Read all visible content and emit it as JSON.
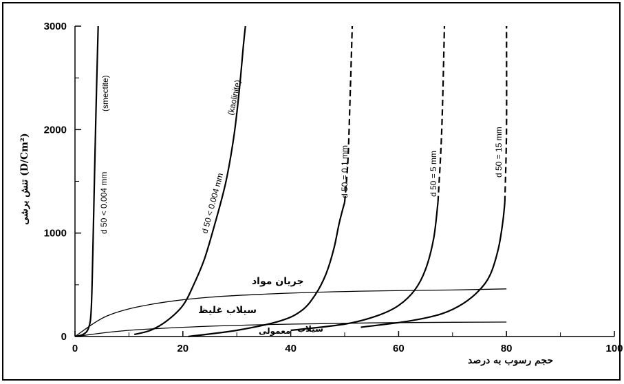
{
  "chart_data": {
    "type": "line",
    "xlabel": "حجم رسوب به درصد",
    "ylabel": "تنش برشی (D/Cm²)",
    "xlim": [
      0,
      100
    ],
    "ylim": [
      0,
      3000
    ],
    "x_ticks": [
      "0",
      "20",
      "40",
      "60",
      "80",
      "100"
    ],
    "y_ticks": [
      "0",
      "1000",
      "2000",
      "3000"
    ],
    "grid": false,
    "series": [
      {
        "name": "d 50 < 0.004 mm (smectite)",
        "points": [
          [
            0,
            0
          ],
          [
            1.5,
            20
          ],
          [
            2.5,
            80
          ],
          [
            3.0,
            250
          ],
          [
            3.3,
            800
          ],
          [
            3.6,
            1500
          ],
          [
            3.9,
            2200
          ],
          [
            4.3,
            3000
          ]
        ],
        "dashed_from_y": null
      },
      {
        "name": "d 50 < 0.004 mm (kaolinite)",
        "points": [
          [
            11,
            20
          ],
          [
            14,
            60
          ],
          [
            17,
            150
          ],
          [
            20,
            300
          ],
          [
            22,
            500
          ],
          [
            24,
            750
          ],
          [
            26,
            1100
          ],
          [
            28,
            1500
          ],
          [
            29.5,
            1950
          ],
          [
            30.5,
            2400
          ],
          [
            31.2,
            2800
          ],
          [
            31.6,
            3000
          ]
        ],
        "dashed_from_y": null
      },
      {
        "name": "d 50 = 0.1 mm",
        "points": [
          [
            21,
            0
          ],
          [
            30,
            60
          ],
          [
            38,
            150
          ],
          [
            42,
            250
          ],
          [
            44.5,
            400
          ],
          [
            46.5,
            600
          ],
          [
            48,
            850
          ],
          [
            49,
            1100
          ],
          [
            50,
            1300
          ],
          [
            50.6,
            1700
          ],
          [
            51,
            2300
          ],
          [
            51.4,
            3000
          ]
        ],
        "dashed_from_y": 1300
      },
      {
        "name": "d 50 = 5 mm",
        "points": [
          [
            40,
            60
          ],
          [
            50,
            120
          ],
          [
            56,
            200
          ],
          [
            60,
            300
          ],
          [
            63,
            450
          ],
          [
            65,
            650
          ],
          [
            66.5,
            950
          ],
          [
            67.3,
            1300
          ],
          [
            68,
            2000
          ],
          [
            68.5,
            3000
          ]
        ],
        "dashed_from_y": 1300
      },
      {
        "name": "d 50 = 15 mm",
        "points": [
          [
            53,
            90
          ],
          [
            62,
            150
          ],
          [
            68,
            220
          ],
          [
            72,
            320
          ],
          [
            75,
            450
          ],
          [
            77,
            600
          ],
          [
            78.5,
            850
          ],
          [
            79.3,
            1100
          ],
          [
            79.7,
            1300
          ],
          [
            80,
            2000
          ],
          [
            80,
            3000
          ]
        ],
        "dashed_from_y": 1300
      },
      {
        "name": "جریان مواد",
        "points": [
          [
            0,
            0
          ],
          [
            6,
            200
          ],
          [
            14,
            310
          ],
          [
            25,
            380
          ],
          [
            40,
            420
          ],
          [
            55,
            440
          ],
          [
            70,
            450
          ],
          [
            80,
            460
          ]
        ],
        "dashed_from_y": null
      },
      {
        "name": "سیلاب غلیظ",
        "points": [
          [
            0,
            0
          ],
          [
            10,
            60
          ],
          [
            25,
            100
          ],
          [
            40,
            120
          ],
          [
            55,
            132
          ],
          [
            70,
            138
          ],
          [
            80,
            140
          ]
        ],
        "dashed_from_y": null
      }
    ],
    "annotations": [
      "جریان مواد",
      "سیلاب غلیظ",
      "سیلاب معمولی"
    ]
  }
}
